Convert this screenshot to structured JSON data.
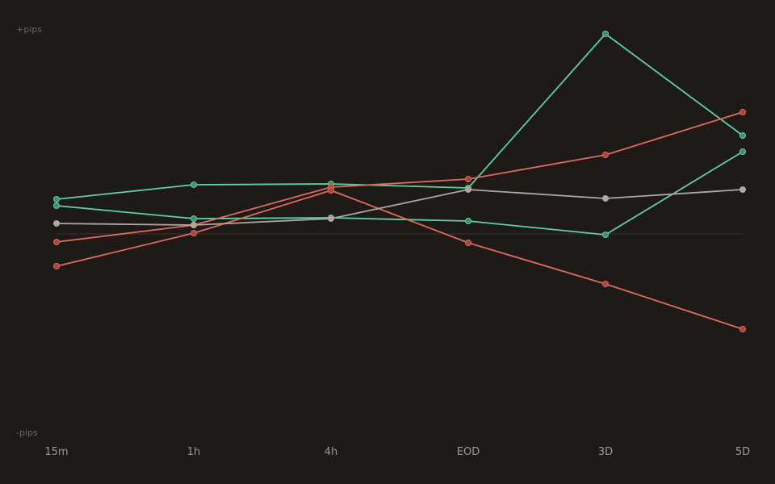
{
  "chart_data": {
    "type": "line",
    "categories": [
      "15m",
      "1h",
      "4h",
      "EOD",
      "3D",
      "5D"
    ],
    "y_top_label": "+pips",
    "y_bottom_label": "-pips",
    "ylim": [
      -250,
      250
    ],
    "zero_line": true,
    "grid": false,
    "colors": {
      "background": "#1e1a17",
      "green": "#5fcfa6",
      "green_dot": "#3f8e6c",
      "red": "#e06a5e",
      "red_dot": "#a8443c",
      "gray": "#b3a69a",
      "gray_dot": "#b3a69a",
      "zero_line": "#3a3430"
    },
    "series": [
      {
        "color_key": "green",
        "values": [
          43,
          61,
          62,
          57,
          248,
          122
        ]
      },
      {
        "color_key": "green",
        "values": [
          35,
          19,
          20,
          16,
          -1,
          102
        ]
      },
      {
        "color_key": "red",
        "values": [
          -10,
          11,
          58,
          68,
          98,
          151
        ]
      },
      {
        "color_key": "red",
        "values": [
          -40,
          1,
          54,
          -11,
          -62,
          -118
        ]
      },
      {
        "color_key": "gray",
        "values": [
          13,
          11,
          19,
          55,
          44,
          55
        ]
      }
    ]
  }
}
